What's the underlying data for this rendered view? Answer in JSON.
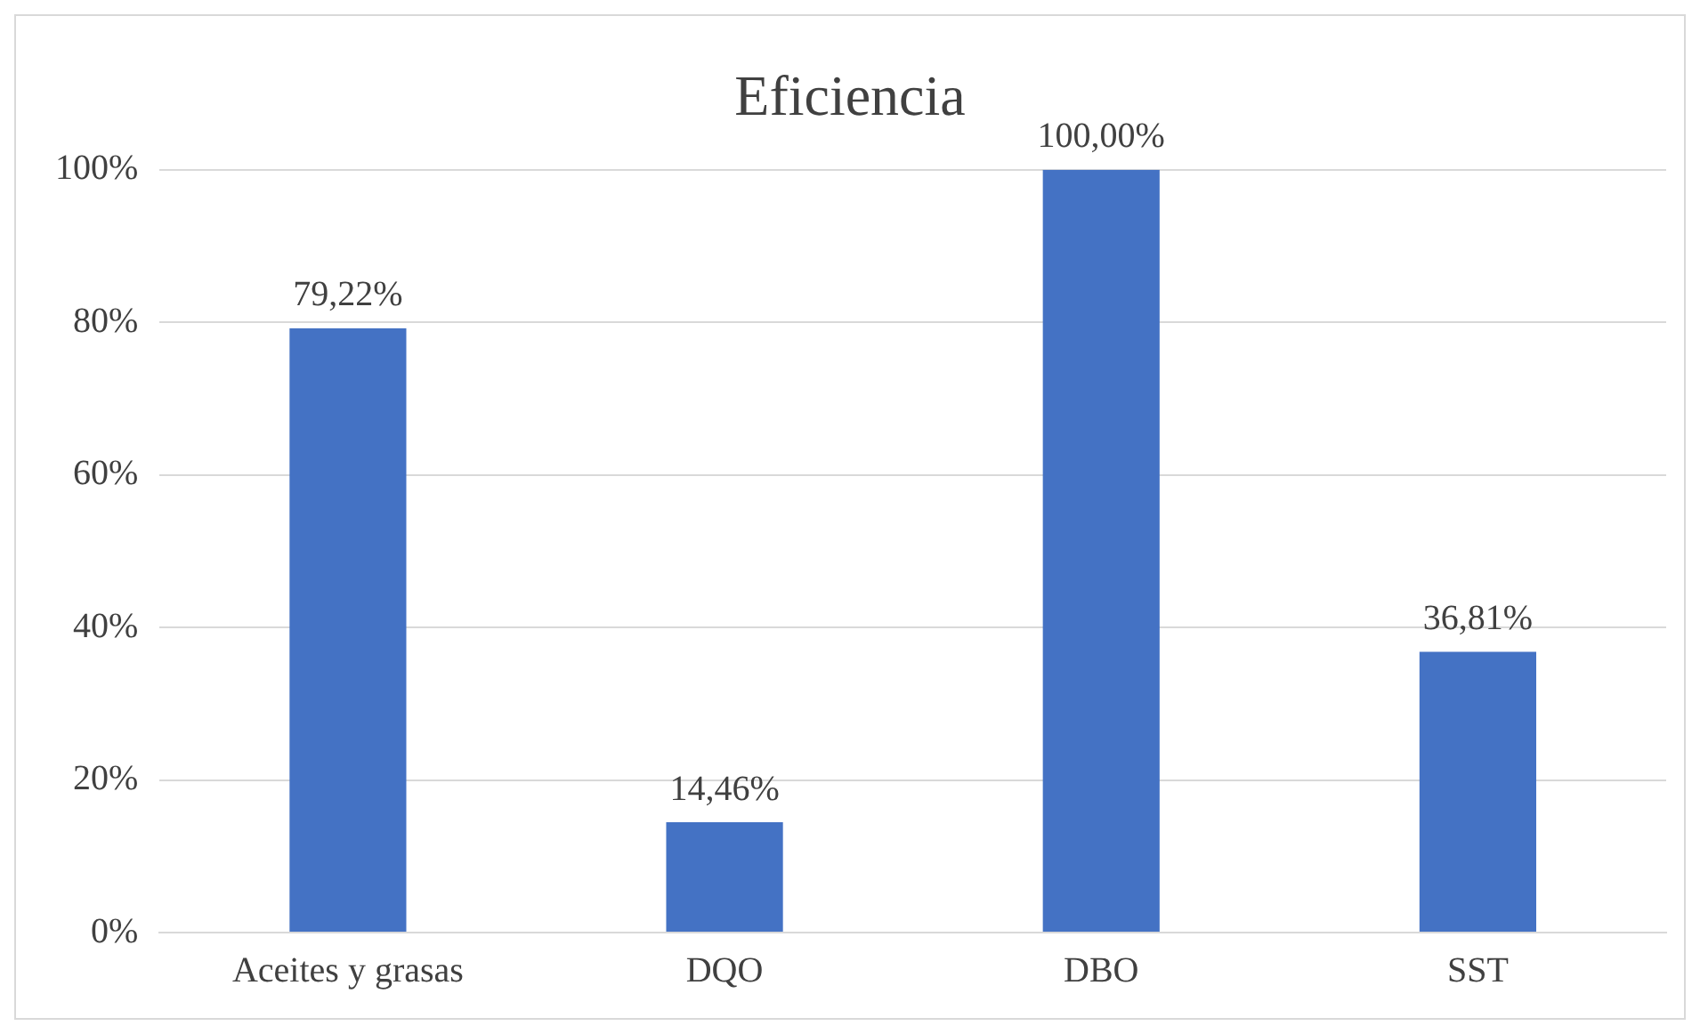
{
  "chart_data": {
    "type": "bar",
    "title": "Eficiencia",
    "categories": [
      "Aceites y grasas",
      "DQO",
      "DBO",
      "SST"
    ],
    "values": [
      79.22,
      14.46,
      100,
      36.81
    ],
    "value_labels": [
      "79,22%",
      "14,46%",
      "100,00%",
      "36,81%"
    ],
    "color": "#4472c4",
    "ylim": [
      0,
      100
    ],
    "yticks": [
      {
        "value": 0,
        "label": "0%"
      },
      {
        "value": 20,
        "label": "20%"
      },
      {
        "value": 40,
        "label": "40%"
      },
      {
        "value": 60,
        "label": "60%"
      },
      {
        "value": 80,
        "label": "80%"
      },
      {
        "value": 100,
        "label": "100%"
      }
    ],
    "grid": "y"
  }
}
